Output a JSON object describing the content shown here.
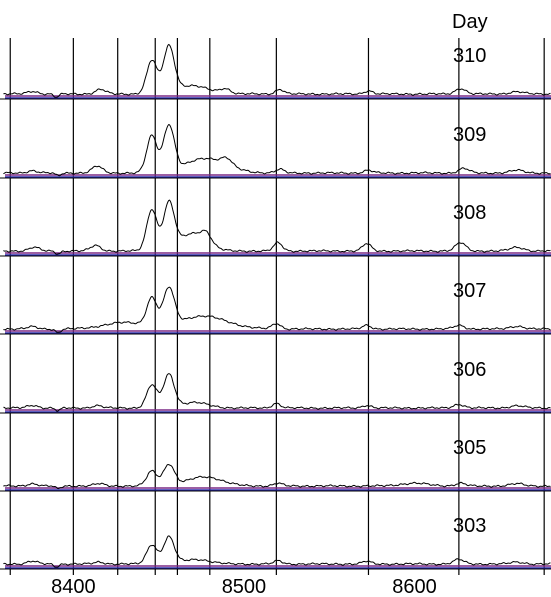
{
  "chart_data": {
    "type": "line",
    "header_label": "Day",
    "xlabel": "",
    "ylabel": "",
    "xlim": [
      8357,
      8680
    ],
    "x_tick_labels": [
      {
        "value": 8400,
        "text": "8400"
      },
      {
        "value": 8500,
        "text": "8500"
      },
      {
        "value": 8600,
        "text": "8600"
      }
    ],
    "vertical_gridlines": [
      8363,
      8400,
      8426,
      8448,
      8461,
      8480,
      8519,
      8573,
      8626,
      8676
    ],
    "grid": true,
    "legend": "none",
    "baseline_colors": [
      "#7b2a86",
      "#2c2cae"
    ],
    "spectrum_color": "#000000",
    "panels": [
      {
        "name": "310",
        "features": [
          {
            "center": 8376,
            "height": 0.06,
            "width": 3
          },
          {
            "center": 8390,
            "height": -0.07,
            "width": 1.5
          },
          {
            "center": 8416,
            "height": 0.1,
            "width": 3
          },
          {
            "center": 8446,
            "height": 0.72,
            "width": 3
          },
          {
            "center": 8456,
            "height": 0.98,
            "width": 3.2
          },
          {
            "center": 8469,
            "height": 0.18,
            "width": 10
          },
          {
            "center": 8489,
            "height": 0.1,
            "width": 3
          },
          {
            "center": 8521,
            "height": 0.1,
            "width": 2.5
          },
          {
            "center": 8573,
            "height": 0.07,
            "width": 2.5
          },
          {
            "center": 8627,
            "height": 0.12,
            "width": 3
          },
          {
            "center": 8660,
            "height": 0.05,
            "width": 4
          }
        ]
      },
      {
        "name": "309",
        "features": [
          {
            "center": 8376,
            "height": 0.05,
            "width": 3
          },
          {
            "center": 8391,
            "height": -0.06,
            "width": 1.5
          },
          {
            "center": 8414,
            "height": 0.15,
            "width": 3
          },
          {
            "center": 8446,
            "height": 0.8,
            "width": 3
          },
          {
            "center": 8456,
            "height": 1.0,
            "width": 3.2
          },
          {
            "center": 8478,
            "height": 0.32,
            "width": 12
          },
          {
            "center": 8490,
            "height": 0.14,
            "width": 3
          },
          {
            "center": 8521,
            "height": 0.08,
            "width": 2.5
          },
          {
            "center": 8573,
            "height": 0.06,
            "width": 2.5
          },
          {
            "center": 8629,
            "height": 0.1,
            "width": 3
          },
          {
            "center": 8660,
            "height": 0.06,
            "width": 4
          }
        ]
      },
      {
        "name": "308",
        "features": [
          {
            "center": 8377,
            "height": 0.08,
            "width": 3
          },
          {
            "center": 8391,
            "height": -0.06,
            "width": 1.5
          },
          {
            "center": 8413,
            "height": 0.12,
            "width": 3
          },
          {
            "center": 8446,
            "height": 0.9,
            "width": 3
          },
          {
            "center": 8456,
            "height": 1.0,
            "width": 3.2
          },
          {
            "center": 8470,
            "height": 0.38,
            "width": 8
          },
          {
            "center": 8478,
            "height": 0.2,
            "width": 3
          },
          {
            "center": 8520,
            "height": 0.18,
            "width": 2.5
          },
          {
            "center": 8572,
            "height": 0.16,
            "width": 2.5
          },
          {
            "center": 8627,
            "height": 0.18,
            "width": 3
          },
          {
            "center": 8660,
            "height": 0.08,
            "width": 4
          }
        ]
      },
      {
        "name": "307",
        "features": [
          {
            "center": 8376,
            "height": 0.05,
            "width": 3
          },
          {
            "center": 8391,
            "height": -0.08,
            "width": 1.5
          },
          {
            "center": 8430,
            "height": 0.14,
            "width": 12
          },
          {
            "center": 8446,
            "height": 0.6,
            "width": 3
          },
          {
            "center": 8456,
            "height": 0.8,
            "width": 3.2
          },
          {
            "center": 8476,
            "height": 0.28,
            "width": 14
          },
          {
            "center": 8519,
            "height": 0.12,
            "width": 2.5
          },
          {
            "center": 8572,
            "height": 0.08,
            "width": 2.5
          },
          {
            "center": 8626,
            "height": 0.08,
            "width": 3
          },
          {
            "center": 8660,
            "height": 0.06,
            "width": 4
          }
        ]
      },
      {
        "name": "306",
        "features": [
          {
            "center": 8376,
            "height": 0.06,
            "width": 3
          },
          {
            "center": 8391,
            "height": -0.06,
            "width": 1.5
          },
          {
            "center": 8414,
            "height": 0.05,
            "width": 3
          },
          {
            "center": 8446,
            "height": 0.5,
            "width": 3
          },
          {
            "center": 8456,
            "height": 0.72,
            "width": 3.2
          },
          {
            "center": 8471,
            "height": 0.12,
            "width": 8
          },
          {
            "center": 8519,
            "height": 0.1,
            "width": 2.5
          },
          {
            "center": 8572,
            "height": 0.06,
            "width": 2.5
          },
          {
            "center": 8626,
            "height": 0.08,
            "width": 3
          },
          {
            "center": 8660,
            "height": 0.05,
            "width": 4
          }
        ]
      },
      {
        "name": "305",
        "features": [
          {
            "center": 8376,
            "height": 0.05,
            "width": 3
          },
          {
            "center": 8391,
            "height": -0.06,
            "width": 1.5
          },
          {
            "center": 8415,
            "height": 0.05,
            "width": 3
          },
          {
            "center": 8446,
            "height": 0.32,
            "width": 3
          },
          {
            "center": 8456,
            "height": 0.46,
            "width": 3.2
          },
          {
            "center": 8477,
            "height": 0.2,
            "width": 10
          },
          {
            "center": 8520,
            "height": 0.06,
            "width": 2.5
          },
          {
            "center": 8600,
            "height": 0.06,
            "width": 8
          },
          {
            "center": 8627,
            "height": 0.06,
            "width": 3
          },
          {
            "center": 8660,
            "height": 0.05,
            "width": 4
          }
        ]
      },
      {
        "name": "303",
        "features": [
          {
            "center": 8376,
            "height": 0.06,
            "width": 3
          },
          {
            "center": 8390,
            "height": -0.06,
            "width": 1.5
          },
          {
            "center": 8415,
            "height": 0.04,
            "width": 3
          },
          {
            "center": 8446,
            "height": 0.42,
            "width": 3
          },
          {
            "center": 8456,
            "height": 0.58,
            "width": 3.2
          },
          {
            "center": 8472,
            "height": 0.1,
            "width": 8
          },
          {
            "center": 8520,
            "height": 0.07,
            "width": 2.5
          },
          {
            "center": 8572,
            "height": 0.06,
            "width": 2.5
          },
          {
            "center": 8626,
            "height": 0.1,
            "width": 3
          },
          {
            "center": 8660,
            "height": 0.04,
            "width": 4
          }
        ]
      }
    ]
  }
}
